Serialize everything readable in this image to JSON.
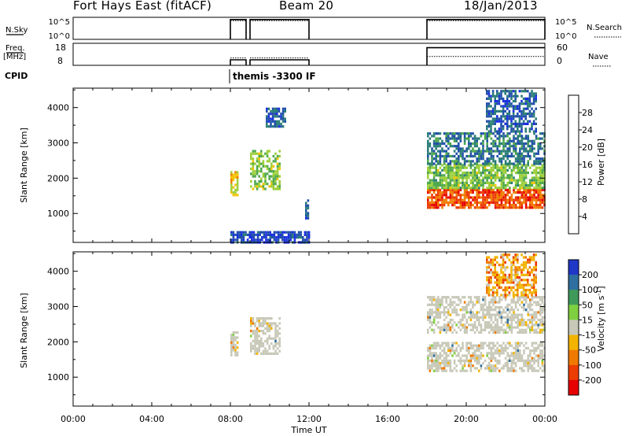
{
  "header": {
    "station": "Fort Hays East (fitACF)",
    "beam": "Beam 20",
    "date": "18/Jan/2013"
  },
  "colors": {
    "power": [
      "#1a2ee0",
      "#1f4fa8",
      "#2a7d76",
      "#4ea84a",
      "#9ccf3a",
      "#f2c400",
      "#f07d00",
      "#ec3a00",
      "#e60000"
    ],
    "velocity": [
      "#2038c8",
      "#2e6fa0",
      "#3f9a5a",
      "#7fd040",
      "#c8c8b8",
      "#f2b400",
      "#f07a00",
      "#ec3c00",
      "#e60000"
    ]
  },
  "panels": {
    "nsky": {
      "label": "N.Sky",
      "left_ticks": [
        "10^5",
        "10^0"
      ],
      "right_label": "N.Search",
      "right_ticks": [
        "10^5",
        "10^0"
      ]
    },
    "freq": {
      "label_line1": "Freq.",
      "label_line2": "[MHz]",
      "left_ticks": [
        "18",
        "8"
      ],
      "right_label": "Nave",
      "right_ticks": [
        "60",
        "0"
      ]
    },
    "cpid": {
      "label": "CPID",
      "annotation": "themis -3300 IF"
    }
  },
  "chart_data": [
    {
      "type": "line",
      "name": "nsky-nsearch",
      "x_unit": "hours UT",
      "segments": [
        [
          8.0,
          8.8
        ],
        [
          9.0,
          12.0
        ],
        [
          18.0,
          24.0
        ]
      ],
      "levels": {
        "nsky": 0.9,
        "nsearch": 0.85
      }
    },
    {
      "type": "line",
      "name": "freq-nave",
      "x_unit": "hours UT",
      "ylim_left": [
        8,
        18
      ],
      "ylim_right": [
        0,
        60
      ],
      "segments_early": [
        [
          8.0,
          8.8
        ],
        [
          9.0,
          12.0
        ]
      ],
      "segment_late": [
        18.0,
        24.0
      ],
      "freq_early": 10.5,
      "freq_late": 16,
      "nave_early": 20,
      "nave_late": 24
    },
    {
      "type": "heatmap",
      "name": "power",
      "ylabel": "Slant Range [km]",
      "yticks": [
        1000,
        2000,
        3000,
        4000
      ],
      "ylim": [
        180,
        4550
      ],
      "xlim": [
        0,
        24
      ],
      "colorbar": {
        "label": "Power [dB]",
        "ticks": [
          "4",
          "8",
          "12",
          "16",
          "20",
          "24",
          "28"
        ],
        "range": [
          0,
          32
        ]
      },
      "features": [
        {
          "x": [
            8.0,
            8.4
          ],
          "range": [
            1500,
            2200
          ],
          "value": 19
        },
        {
          "x": [
            9.0,
            10.5
          ],
          "range": [
            1700,
            2800
          ],
          "value": 15
        },
        {
          "x": [
            9.8,
            10.8
          ],
          "range": [
            3500,
            4000
          ],
          "value": 6
        },
        {
          "x": [
            11.8,
            12.0
          ],
          "range": [
            900,
            1400
          ],
          "value": 5
        },
        {
          "x": [
            8.0,
            12.0
          ],
          "range": [
            180,
            500
          ],
          "value": 4
        },
        {
          "x": [
            18.0,
            24.0
          ],
          "range": [
            1150,
            1700
          ],
          "value": 26
        },
        {
          "x": [
            18.0,
            24.0
          ],
          "range": [
            1700,
            2400
          ],
          "value": 14
        },
        {
          "x": [
            18.0,
            24.0
          ],
          "range": [
            2400,
            3300
          ],
          "value": 8
        },
        {
          "x": [
            21.0,
            23.6
          ],
          "range": [
            3300,
            4500
          ],
          "value": 6
        }
      ]
    },
    {
      "type": "heatmap",
      "name": "velocity",
      "ylabel": "Slant Range [km]",
      "yticks": [
        1000,
        2000,
        3000,
        4000
      ],
      "ylim": [
        180,
        4550
      ],
      "xlim": [
        0,
        24
      ],
      "xlabel": "Time UT",
      "xticks": [
        "00:00",
        "04:00",
        "08:00",
        "12:00",
        "16:00",
        "20:00",
        "00:00"
      ],
      "colorbar": {
        "label": "Velocity [m s^-1]",
        "ticks": [
          "200",
          "100",
          "50",
          "15",
          "-15",
          "-50",
          "-100",
          "-200"
        ]
      },
      "features": [
        {
          "x": [
            8.0,
            8.4
          ],
          "range": [
            1600,
            2300
          ],
          "value": 0
        },
        {
          "x": [
            9.0,
            10.5
          ],
          "range": [
            1700,
            2700
          ],
          "value": 0
        },
        {
          "x": [
            18.0,
            24.0
          ],
          "range": [
            1150,
            2000
          ],
          "value": 0
        },
        {
          "x": [
            18.0,
            24.0
          ],
          "range": [
            2300,
            3300
          ],
          "value": 0
        },
        {
          "x": [
            21.0,
            23.6
          ],
          "range": [
            3300,
            4500
          ],
          "value": -40
        }
      ]
    }
  ]
}
